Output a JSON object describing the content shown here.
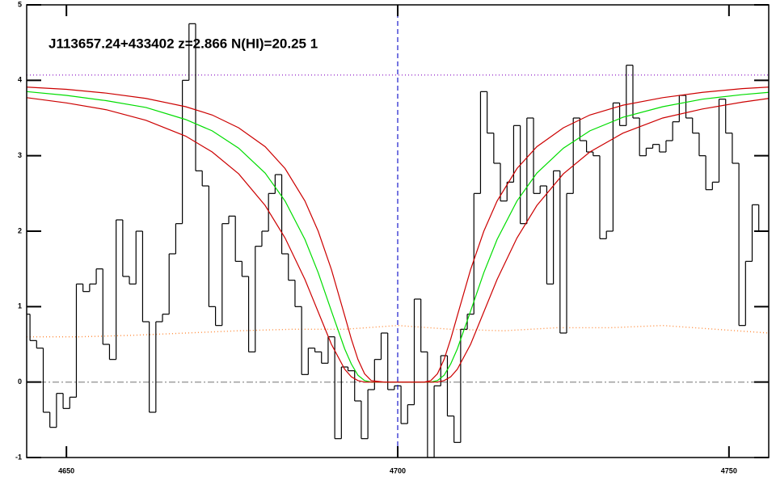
{
  "chart_data": {
    "type": "line",
    "title": "J113657.24+433402 z=2.866 N(HI)=20.25 1",
    "xlim": [
      4644,
      4756
    ],
    "ylim": [
      -1,
      5
    ],
    "xticks": [
      4650,
      4700,
      4750
    ],
    "yticks": [
      -1,
      0,
      1,
      2,
      3,
      4,
      5
    ],
    "vline": {
      "x": 4700,
      "color": "#1a1acc"
    },
    "series": [
      {
        "style": "dotted",
        "color": "#9933cc",
        "x": [
          4644,
          4756
        ],
        "values": [
          4.07,
          4.07
        ]
      },
      {
        "style": "dashdot",
        "color": "#999999",
        "x": [
          4644,
          4756
        ],
        "values": [
          0,
          0
        ]
      },
      {
        "style": "dotted",
        "color": "#ff8c3c",
        "x": [
          4644,
          4652,
          4660,
          4668,
          4676,
          4684,
          4692,
          4700,
          4708,
          4716,
          4724,
          4732,
          4740,
          4748,
          4756
        ],
        "values": [
          0.6,
          0.6,
          0.62,
          0.65,
          0.68,
          0.7,
          0.7,
          0.75,
          0.7,
          0.68,
          0.72,
          0.72,
          0.75,
          0.7,
          0.65
        ]
      },
      {
        "style": "step",
        "color": "#000000",
        "x": [
          4644,
          4645,
          4646,
          4647,
          4648,
          4649,
          4650,
          4651,
          4652,
          4653,
          4654,
          4655,
          4656,
          4657,
          4658,
          4659,
          4660,
          4661,
          4662,
          4663,
          4664,
          4665,
          4666,
          4667,
          4668,
          4669,
          4670,
          4671,
          4672,
          4673,
          4674,
          4675,
          4676,
          4677,
          4678,
          4679,
          4680,
          4681,
          4682,
          4683,
          4684,
          4685,
          4686,
          4687,
          4688,
          4689,
          4690,
          4691,
          4692,
          4693,
          4694,
          4695,
          4696,
          4697,
          4698,
          4699,
          4700,
          4701,
          4702,
          4703,
          4704,
          4705,
          4706,
          4707,
          4708,
          4709,
          4710,
          4711,
          4712,
          4713,
          4714,
          4715,
          4716,
          4717,
          4718,
          4719,
          4720,
          4721,
          4722,
          4723,
          4724,
          4725,
          4726,
          4727,
          4728,
          4729,
          4730,
          4731,
          4732,
          4733,
          4734,
          4735,
          4736,
          4737,
          4738,
          4739,
          4740,
          4741,
          4742,
          4743,
          4744,
          4745,
          4746,
          4747,
          4748,
          4749,
          4750,
          4751,
          4752,
          4753,
          4754,
          4755
        ],
        "values": [
          0.9,
          0.55,
          0.45,
          -0.4,
          -0.6,
          -0.15,
          -0.35,
          -0.2,
          1.3,
          1.2,
          1.3,
          1.5,
          0.5,
          0.3,
          2.15,
          1.4,
          1.3,
          2.0,
          0.8,
          -0.4,
          0.8,
          0.9,
          1.7,
          2.1,
          4.0,
          4.75,
          2.8,
          2.6,
          1.0,
          0.75,
          2.1,
          2.2,
          1.6,
          1.4,
          0.4,
          1.8,
          2.0,
          2.5,
          2.75,
          1.7,
          1.35,
          1.0,
          0.1,
          0.45,
          0.4,
          0.25,
          0.6,
          -0.75,
          0.2,
          0.15,
          -0.25,
          -0.75,
          -0.1,
          0.3,
          0.65,
          -0.1,
          -0.05,
          -0.55,
          -0.3,
          1.1,
          0.4,
          -1.0,
          -0.05,
          0.35,
          -0.45,
          -0.8,
          0.7,
          0.9,
          2.5,
          3.85,
          3.3,
          2.9,
          2.4,
          2.65,
          3.4,
          2.1,
          3.5,
          2.5,
          2.6,
          1.3,
          2.8,
          0.65,
          2.5,
          3.5,
          3.2,
          3.05,
          3.0,
          1.9,
          2.0,
          3.7,
          3.4,
          4.2,
          3.5,
          3.0,
          3.1,
          3.15,
          3.05,
          3.2,
          3.45,
          3.8,
          3.5,
          3.3,
          3.0,
          2.55,
          2.65,
          3.75,
          3.3,
          2.9,
          0.75,
          1.6,
          2.35,
          2.0
        ]
      },
      {
        "style": "solid",
        "color": "#00dd00",
        "x": [
          4644,
          4650,
          4656,
          4662,
          4668,
          4672,
          4676,
          4680,
          4683,
          4686,
          4688,
          4690,
          4692,
          4693,
          4694,
          4695,
          4696,
          4698,
          4700,
          4702,
          4704,
          4705,
          4706,
          4707,
          4708,
          4709,
          4711,
          4713,
          4715,
          4718,
          4721,
          4725,
          4729,
          4734,
          4740,
          4746,
          4752,
          4756
        ],
        "values": [
          3.85,
          3.8,
          3.73,
          3.64,
          3.48,
          3.33,
          3.1,
          2.77,
          2.4,
          1.89,
          1.45,
          0.94,
          0.44,
          0.24,
          0.09,
          0.02,
          0,
          0,
          0,
          0,
          0,
          0,
          0.02,
          0.09,
          0.24,
          0.44,
          0.94,
          1.45,
          1.89,
          2.4,
          2.77,
          3.1,
          3.33,
          3.51,
          3.65,
          3.75,
          3.81,
          3.84
        ]
      },
      {
        "style": "solid",
        "color": "#cc0000",
        "x": [
          4644,
          4650,
          4656,
          4662,
          4668,
          4672,
          4676,
          4680,
          4683,
          4686,
          4688,
          4690,
          4692,
          4693,
          4694,
          4695,
          4696,
          4698,
          4700,
          4702,
          4704,
          4705,
          4706,
          4707,
          4708,
          4709,
          4711,
          4713,
          4715,
          4718,
          4721,
          4725,
          4729,
          4734,
          4740,
          4746,
          4752,
          4756
        ],
        "values": [
          3.91,
          3.88,
          3.83,
          3.76,
          3.65,
          3.54,
          3.37,
          3.12,
          2.83,
          2.4,
          2.0,
          1.49,
          0.88,
          0.57,
          0.3,
          0.11,
          0.02,
          0,
          0,
          0,
          0,
          0.02,
          0.11,
          0.3,
          0.57,
          0.88,
          1.49,
          2.0,
          2.4,
          2.83,
          3.12,
          3.37,
          3.54,
          3.67,
          3.77,
          3.84,
          3.89,
          3.91
        ]
      },
      {
        "style": "solid",
        "color": "#cc0000",
        "x": [
          4644,
          4650,
          4656,
          4662,
          4668,
          4672,
          4676,
          4680,
          4683,
          4686,
          4688,
          4690,
          4692,
          4693,
          4694,
          4695,
          4696,
          4698,
          4700,
          4702,
          4704,
          4705,
          4706,
          4707,
          4708,
          4709,
          4711,
          4713,
          4715,
          4718,
          4721,
          4725,
          4729,
          4734,
          4740,
          4746,
          4752,
          4756
        ],
        "values": [
          3.77,
          3.7,
          3.61,
          3.47,
          3.26,
          3.05,
          2.76,
          2.34,
          1.91,
          1.36,
          0.93,
          0.5,
          0.17,
          0.07,
          0.02,
          0,
          0,
          0,
          0,
          0,
          0,
          0,
          0,
          0.02,
          0.07,
          0.17,
          0.5,
          0.93,
          1.36,
          1.91,
          2.34,
          2.76,
          3.05,
          3.3,
          3.5,
          3.62,
          3.71,
          3.76
        ]
      }
    ]
  }
}
